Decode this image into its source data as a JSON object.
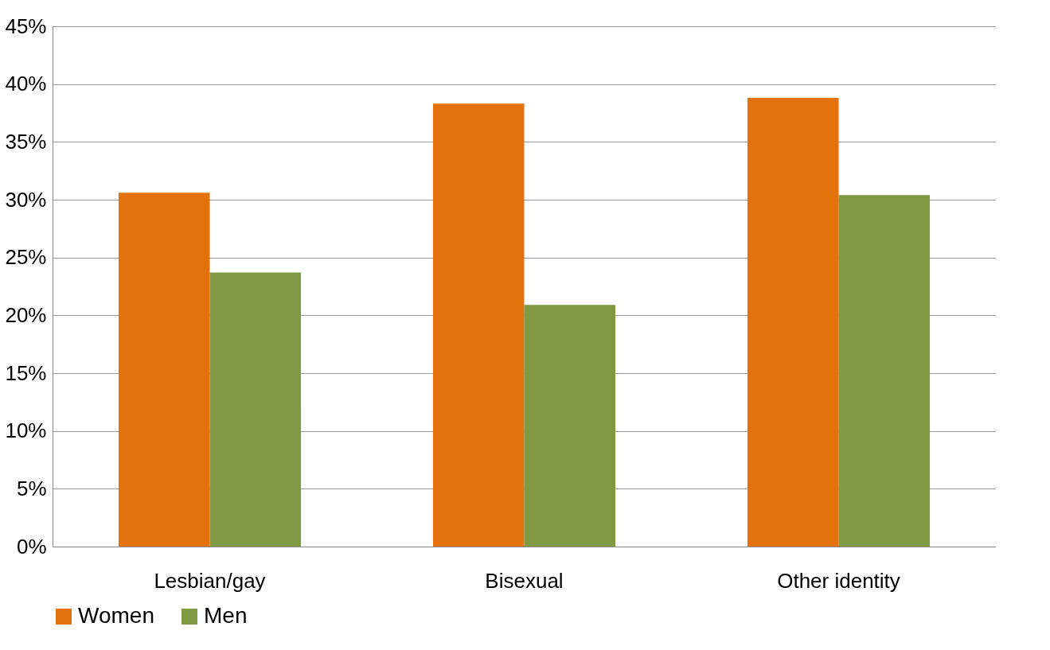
{
  "chart_data": {
    "type": "bar",
    "categories": [
      "Lesbian/gay",
      "Bisexual",
      "Other identity"
    ],
    "series": [
      {
        "name": "Women",
        "color": "#e3710d",
        "values": [
          30.6,
          38.3,
          38.8
        ]
      },
      {
        "name": "Men",
        "color": "#7f9a43",
        "values": [
          23.7,
          20.9,
          30.4
        ]
      }
    ],
    "ylim": [
      0,
      45
    ],
    "yticks": [
      {
        "value": 0,
        "label": "0%"
      },
      {
        "value": 5,
        "label": "5%"
      },
      {
        "value": 10,
        "label": "10%"
      },
      {
        "value": 15,
        "label": "15%"
      },
      {
        "value": 20,
        "label": "20%"
      },
      {
        "value": 25,
        "label": "25%"
      },
      {
        "value": 30,
        "label": "30%"
      },
      {
        "value": 35,
        "label": "35%"
      },
      {
        "value": 40,
        "label": "40%"
      },
      {
        "value": 45,
        "label": "45%"
      }
    ],
    "grid": "y",
    "legend": "bottom"
  }
}
